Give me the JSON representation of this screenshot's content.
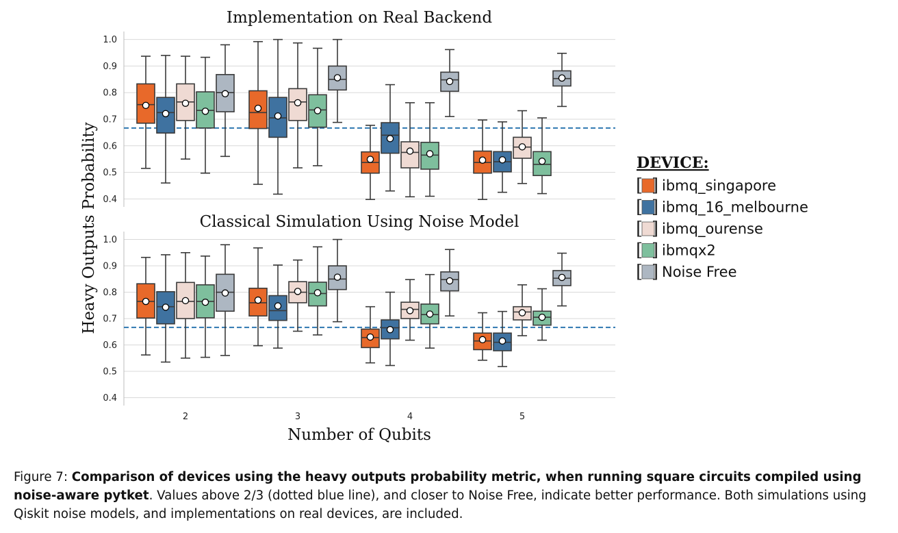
{
  "chart_data": [
    {
      "type": "box",
      "title": "Implementation on Real Backend",
      "ylim": [
        0.37,
        1.03
      ],
      "yticks": [
        "0.4",
        "0.5",
        "0.6",
        "0.7",
        "0.8",
        "0.9",
        "1.0"
      ],
      "categories": [
        "2",
        "3",
        "4",
        "5"
      ],
      "reference_line": 0.6667,
      "grid": true,
      "series": [
        {
          "name": "ibmq_singapore",
          "boxes": [
            {
              "whisker_low": 0.515,
              "q1": 0.685,
              "median": 0.755,
              "q3": 0.833,
              "whisker_high": 0.937,
              "mean": 0.752
            },
            {
              "whisker_low": 0.455,
              "q1": 0.665,
              "median": 0.725,
              "q3": 0.807,
              "whisker_high": 0.992,
              "mean": 0.741
            },
            {
              "whisker_low": 0.398,
              "q1": 0.497,
              "median": 0.537,
              "q3": 0.577,
              "whisker_high": 0.677,
              "mean": 0.549
            },
            {
              "whisker_low": 0.398,
              "q1": 0.497,
              "median": 0.537,
              "q3": 0.58,
              "whisker_high": 0.697,
              "mean": 0.546
            }
          ]
        },
        {
          "name": "ibmq_16_melbourne",
          "boxes": [
            {
              "whisker_low": 0.46,
              "q1": 0.648,
              "median": 0.725,
              "q3": 0.782,
              "whisker_high": 0.94,
              "mean": 0.721
            },
            {
              "whisker_low": 0.418,
              "q1": 0.632,
              "median": 0.705,
              "q3": 0.782,
              "whisker_high": 1.0,
              "mean": 0.712
            },
            {
              "whisker_low": 0.43,
              "q1": 0.572,
              "median": 0.64,
              "q3": 0.687,
              "whisker_high": 0.83,
              "mean": 0.627
            },
            {
              "whisker_low": 0.425,
              "q1": 0.502,
              "median": 0.54,
              "q3": 0.578,
              "whisker_high": 0.69,
              "mean": 0.547
            }
          ]
        },
        {
          "name": "ibmq_ourense",
          "boxes": [
            {
              "whisker_low": 0.55,
              "q1": 0.695,
              "median": 0.765,
              "q3": 0.833,
              "whisker_high": 0.937,
              "mean": 0.76
            },
            {
              "whisker_low": 0.517,
              "q1": 0.695,
              "median": 0.765,
              "q3": 0.815,
              "whisker_high": 0.987,
              "mean": 0.762
            },
            {
              "whisker_low": 0.408,
              "q1": 0.517,
              "median": 0.575,
              "q3": 0.615,
              "whisker_high": 0.762,
              "mean": 0.58
            },
            {
              "whisker_low": 0.458,
              "q1": 0.553,
              "median": 0.595,
              "q3": 0.632,
              "whisker_high": 0.732,
              "mean": 0.596
            }
          ]
        },
        {
          "name": "ibmqx2",
          "boxes": [
            {
              "whisker_low": 0.497,
              "q1": 0.667,
              "median": 0.733,
              "q3": 0.803,
              "whisker_high": 0.933,
              "mean": 0.73
            },
            {
              "whisker_low": 0.525,
              "q1": 0.67,
              "median": 0.735,
              "q3": 0.792,
              "whisker_high": 0.967,
              "mean": 0.732
            },
            {
              "whisker_low": 0.41,
              "q1": 0.512,
              "median": 0.565,
              "q3": 0.613,
              "whisker_high": 0.762,
              "mean": 0.57
            },
            {
              "whisker_low": 0.42,
              "q1": 0.488,
              "median": 0.53,
              "q3": 0.578,
              "whisker_high": 0.705,
              "mean": 0.542
            }
          ]
        },
        {
          "name": "Noise Free",
          "boxes": [
            {
              "whisker_low": 0.56,
              "q1": 0.728,
              "median": 0.8,
              "q3": 0.868,
              "whisker_high": 0.98,
              "mean": 0.796
            },
            {
              "whisker_low": 0.688,
              "q1": 0.81,
              "median": 0.85,
              "q3": 0.9,
              "whisker_high": 1.0,
              "mean": 0.856
            },
            {
              "whisker_low": 0.71,
              "q1": 0.805,
              "median": 0.848,
              "q3": 0.877,
              "whisker_high": 0.962,
              "mean": 0.842
            },
            {
              "whisker_low": 0.748,
              "q1": 0.825,
              "median": 0.853,
              "q3": 0.882,
              "whisker_high": 0.948,
              "mean": 0.855
            }
          ]
        }
      ]
    },
    {
      "type": "box",
      "title": "Classical Simulation Using Noise Model",
      "ylim": [
        0.37,
        1.03
      ],
      "yticks": [
        "0.4",
        "0.5",
        "0.6",
        "0.7",
        "0.8",
        "0.9",
        "1.0"
      ],
      "categories": [
        "2",
        "3",
        "4",
        "5"
      ],
      "reference_line": 0.6667,
      "grid": true,
      "series": [
        {
          "name": "ibmq_singapore",
          "boxes": [
            {
              "whisker_low": 0.562,
              "q1": 0.702,
              "median": 0.765,
              "q3": 0.832,
              "whisker_high": 0.932,
              "mean": 0.765
            },
            {
              "whisker_low": 0.597,
              "q1": 0.71,
              "median": 0.76,
              "q3": 0.815,
              "whisker_high": 0.968,
              "mean": 0.77
            },
            {
              "whisker_low": 0.532,
              "q1": 0.59,
              "median": 0.628,
              "q3": 0.66,
              "whisker_high": 0.745,
              "mean": 0.63
            },
            {
              "whisker_low": 0.542,
              "q1": 0.582,
              "median": 0.615,
              "q3": 0.645,
              "whisker_high": 0.722,
              "mean": 0.62
            }
          ]
        },
        {
          "name": "ibmq_16_melbourne",
          "boxes": [
            {
              "whisker_low": 0.535,
              "q1": 0.68,
              "median": 0.745,
              "q3": 0.802,
              "whisker_high": 0.942,
              "mean": 0.743
            },
            {
              "whisker_low": 0.588,
              "q1": 0.693,
              "median": 0.73,
              "q3": 0.787,
              "whisker_high": 0.903,
              "mean": 0.748
            },
            {
              "whisker_low": 0.522,
              "q1": 0.623,
              "median": 0.665,
              "q3": 0.695,
              "whisker_high": 0.8,
              "mean": 0.658
            },
            {
              "whisker_low": 0.518,
              "q1": 0.578,
              "median": 0.61,
              "q3": 0.645,
              "whisker_high": 0.727,
              "mean": 0.615
            }
          ]
        },
        {
          "name": "ibmq_ourense",
          "boxes": [
            {
              "whisker_low": 0.55,
              "q1": 0.7,
              "median": 0.765,
              "q3": 0.837,
              "whisker_high": 0.95,
              "mean": 0.768
            },
            {
              "whisker_low": 0.652,
              "q1": 0.76,
              "median": 0.8,
              "q3": 0.84,
              "whisker_high": 0.922,
              "mean": 0.803
            },
            {
              "whisker_low": 0.618,
              "q1": 0.7,
              "median": 0.735,
              "q3": 0.762,
              "whisker_high": 0.848,
              "mean": 0.73
            },
            {
              "whisker_low": 0.635,
              "q1": 0.695,
              "median": 0.725,
              "q3": 0.745,
              "whisker_high": 0.828,
              "mean": 0.722
            }
          ]
        },
        {
          "name": "ibmqx2",
          "boxes": [
            {
              "whisker_low": 0.553,
              "q1": 0.703,
              "median": 0.765,
              "q3": 0.828,
              "whisker_high": 0.937,
              "mean": 0.762
            },
            {
              "whisker_low": 0.638,
              "q1": 0.748,
              "median": 0.795,
              "q3": 0.838,
              "whisker_high": 0.972,
              "mean": 0.798
            },
            {
              "whisker_low": 0.588,
              "q1": 0.68,
              "median": 0.715,
              "q3": 0.755,
              "whisker_high": 0.867,
              "mean": 0.717
            },
            {
              "whisker_low": 0.618,
              "q1": 0.675,
              "median": 0.705,
              "q3": 0.728,
              "whisker_high": 0.813,
              "mean": 0.705
            }
          ]
        },
        {
          "name": "Noise Free",
          "boxes": [
            {
              "whisker_low": 0.56,
              "q1": 0.728,
              "median": 0.8,
              "q3": 0.868,
              "whisker_high": 0.98,
              "mean": 0.797
            },
            {
              "whisker_low": 0.688,
              "q1": 0.81,
              "median": 0.85,
              "q3": 0.9,
              "whisker_high": 1.0,
              "mean": 0.857
            },
            {
              "whisker_low": 0.71,
              "q1": 0.805,
              "median": 0.848,
              "q3": 0.877,
              "whisker_high": 0.962,
              "mean": 0.843
            },
            {
              "whisker_low": 0.748,
              "q1": 0.825,
              "median": 0.853,
              "q3": 0.882,
              "whisker_high": 0.948,
              "mean": 0.856
            }
          ]
        }
      ]
    }
  ],
  "axes": {
    "xlabel": "Number of Qubits",
    "ylabel": "Heavy Outputs Probability"
  },
  "legend": {
    "title": "DEVICE:",
    "placement": "right",
    "entries": [
      {
        "label": "ibmq_singapore",
        "color": "#e8692a"
      },
      {
        "label": "ibmq_16_melbourne",
        "color": "#3f72a0"
      },
      {
        "label": "ibmq_ourense",
        "color": "#efdad3"
      },
      {
        "label": "ibmqx2",
        "color": "#7ebf9d"
      },
      {
        "label": "Noise Free",
        "color": "#adb7c2"
      }
    ]
  },
  "colors": {
    "reference_line": "#2f78b1",
    "box_edge": "#3a3a3a",
    "grid": "#d9d9d9"
  },
  "caption": {
    "prefix": "Figure 7: ",
    "bold": "Comparison of devices using the heavy outputs probability metric, when running square circuits compiled using noise-aware pytket",
    "rest": ". Values above 2/3 (dotted blue line), and closer to Noise Free, indicate better performance. Both simulations using Qiskit noise models, and implementations on real devices, are included."
  }
}
